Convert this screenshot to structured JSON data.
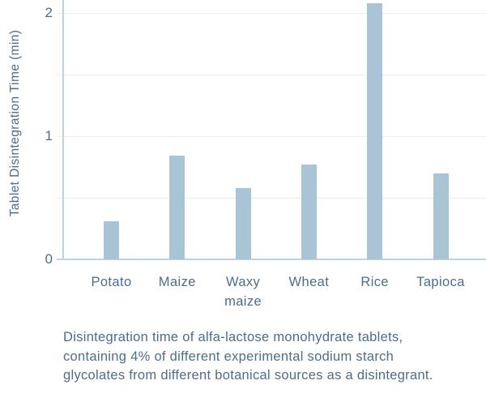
{
  "chart_data": {
    "type": "bar",
    "categories": [
      "Potato",
      "Maize",
      "Waxy\nmaize",
      "Wheat",
      "Rice",
      "Tapioca"
    ],
    "values": [
      0.31,
      0.84,
      0.58,
      0.77,
      2.08,
      0.7
    ],
    "title": "",
    "xlabel": "",
    "ylabel": "Tablet Disintegration Time (min)",
    "ylim": [
      0,
      2.1
    ],
    "yticks": [
      0,
      1,
      2
    ],
    "gridlines": [
      0.5,
      1,
      1.5,
      2
    ],
    "grid": true,
    "legend_position": "none",
    "bar_color": "#a9c4d5"
  },
  "caption": {
    "lines": [
      "Disintegration time of alfa-lactose monohydrate tablets,",
      "containing 4% of different experimental sodium starch",
      "glycolates from different botanical sources as a disintegrant."
    ]
  },
  "colors": {
    "text": "#4d6d8c",
    "bar": "#a9c4d5",
    "axis": "#bdd3e2",
    "grid": "#e5eef6"
  }
}
